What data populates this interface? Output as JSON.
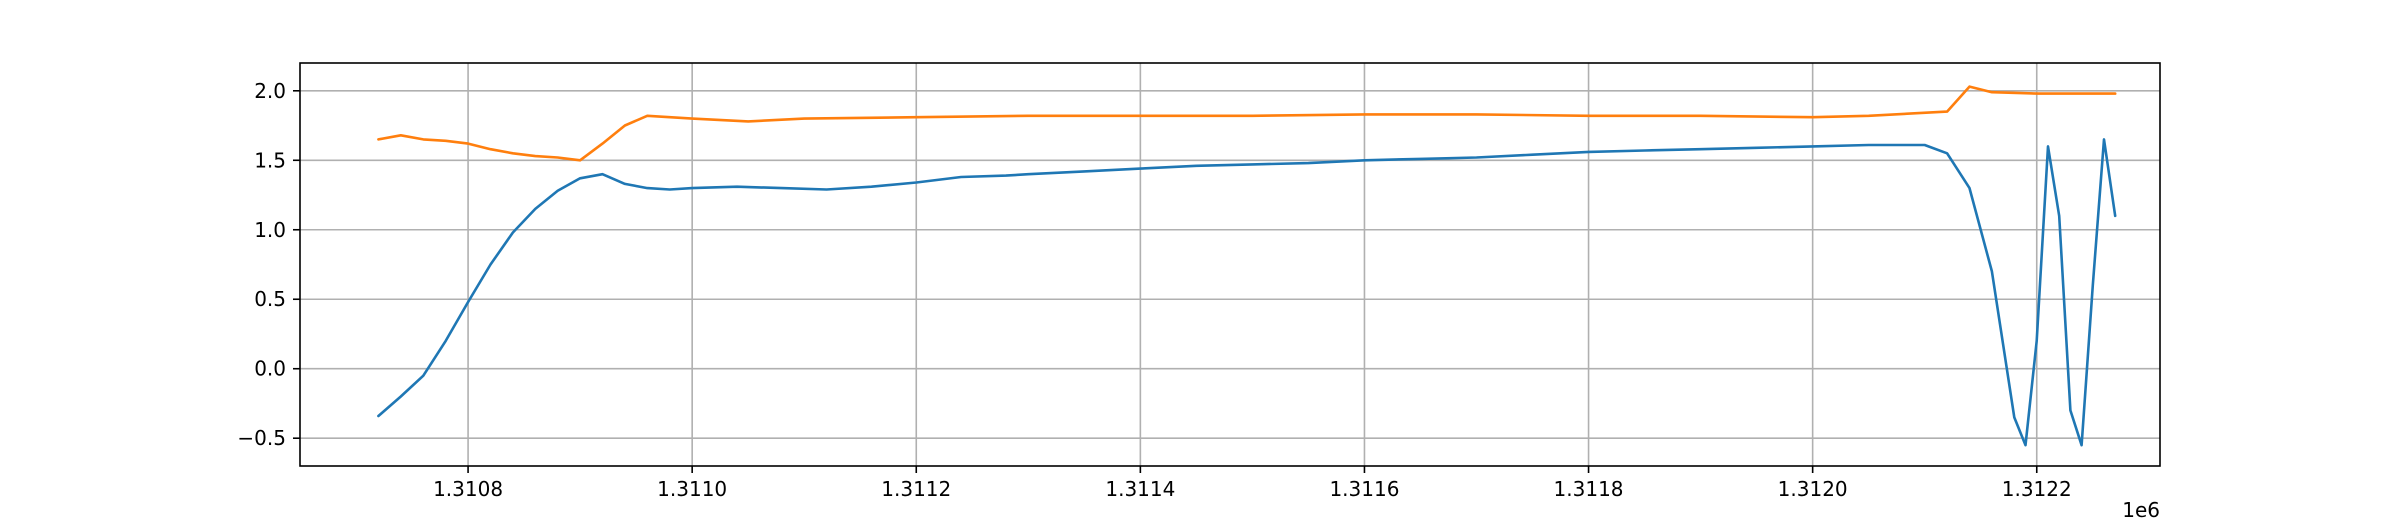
{
  "chart_data": {
    "type": "line",
    "title": "",
    "xlabel": "",
    "ylabel": "",
    "x_offset_label": "1e6",
    "xlim": [
      1.31065,
      1.31231
    ],
    "ylim": [
      -0.7,
      2.2
    ],
    "xticks": [
      1.3108,
      1.311,
      1.3112,
      1.3114,
      1.3116,
      1.3118,
      1.312,
      1.3122
    ],
    "xtick_labels": [
      "1.3108",
      "1.3110",
      "1.3112",
      "1.3114",
      "1.3116",
      "1.3118",
      "1.3120",
      "1.3122"
    ],
    "yticks": [
      -0.5,
      0.0,
      0.5,
      1.0,
      1.5,
      2.0
    ],
    "ytick_labels": [
      "−0.5",
      "0.0",
      "0.5",
      "1.0",
      "1.5",
      "2.0"
    ],
    "grid": true,
    "legend": "none",
    "series": [
      {
        "color": "#1f77b4",
        "x": [
          1.31072,
          1.31074,
          1.31076,
          1.31078,
          1.3108,
          1.31082,
          1.31084,
          1.31086,
          1.31088,
          1.3109,
          1.31092,
          1.31094,
          1.31096,
          1.31098,
          1.311,
          1.31104,
          1.31108,
          1.31112,
          1.31116,
          1.3112,
          1.31124,
          1.31128,
          1.3113,
          1.31135,
          1.3114,
          1.31145,
          1.3115,
          1.31155,
          1.3116,
          1.31165,
          1.3117,
          1.31175,
          1.3118,
          1.31185,
          1.3119,
          1.31195,
          1.312,
          1.31205,
          1.3121,
          1.31212,
          1.31214,
          1.31216,
          1.31218,
          1.31219,
          1.3122,
          1.31221,
          1.31222,
          1.31223,
          1.31224,
          1.31225,
          1.31226,
          1.31227
        ],
        "y": [
          -0.34,
          -0.2,
          -0.05,
          0.2,
          0.48,
          0.75,
          0.98,
          1.15,
          1.28,
          1.37,
          1.4,
          1.33,
          1.3,
          1.29,
          1.3,
          1.31,
          1.3,
          1.29,
          1.31,
          1.34,
          1.38,
          1.39,
          1.4,
          1.42,
          1.44,
          1.46,
          1.47,
          1.48,
          1.5,
          1.51,
          1.52,
          1.54,
          1.56,
          1.57,
          1.58,
          1.59,
          1.6,
          1.61,
          1.61,
          1.55,
          1.3,
          0.7,
          -0.35,
          -0.55,
          0.2,
          1.6,
          1.1,
          -0.3,
          -0.55,
          0.6,
          1.65,
          1.1
        ]
      },
      {
        "color": "#ff7f0e",
        "x": [
          1.31072,
          1.31074,
          1.31076,
          1.31078,
          1.3108,
          1.31082,
          1.31084,
          1.31086,
          1.31088,
          1.3109,
          1.31092,
          1.31094,
          1.31096,
          1.311,
          1.31105,
          1.3111,
          1.3112,
          1.3113,
          1.3114,
          1.3115,
          1.3116,
          1.3117,
          1.3118,
          1.3119,
          1.312,
          1.31205,
          1.31212,
          1.31214,
          1.31216,
          1.3122,
          1.31224,
          1.31227
        ],
        "y": [
          1.65,
          1.68,
          1.65,
          1.64,
          1.62,
          1.58,
          1.55,
          1.53,
          1.52,
          1.5,
          1.62,
          1.75,
          1.82,
          1.8,
          1.78,
          1.8,
          1.81,
          1.82,
          1.82,
          1.82,
          1.83,
          1.83,
          1.82,
          1.82,
          1.81,
          1.82,
          1.85,
          2.03,
          1.99,
          1.98,
          1.98,
          1.98
        ]
      }
    ]
  }
}
